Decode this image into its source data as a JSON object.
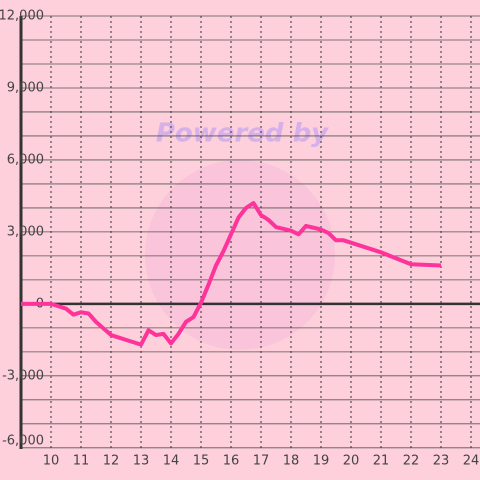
{
  "chart_data": {
    "type": "line",
    "watermark": "Powered by",
    "x": [
      9,
      10,
      10.25,
      10.5,
      10.75,
      11,
      11.25,
      11.5,
      12,
      12.5,
      13,
      13.25,
      13.5,
      13.75,
      14,
      14.25,
      14.5,
      14.75,
      15,
      15.25,
      15.5,
      15.75,
      16,
      16.25,
      16.5,
      16.75,
      17,
      17.25,
      17.5,
      18,
      18.25,
      18.5,
      19,
      19.25,
      19.5,
      19.75,
      20,
      21,
      22,
      23
    ],
    "series": [
      {
        "color": "#ff3399",
        "values": [
          0,
          0,
          -100,
          -200,
          -450,
          -350,
          -400,
          -750,
          -1300,
          -1500,
          -1700,
          -1100,
          -1300,
          -1250,
          -1650,
          -1250,
          -750,
          -550,
          50,
          800,
          1600,
          2200,
          2900,
          3600,
          4000,
          4200,
          3700,
          3500,
          3200,
          3050,
          2900,
          3250,
          3100,
          2950,
          2650,
          2650,
          2550,
          2150,
          1650,
          1600
        ]
      }
    ],
    "xlim": [
      9,
      24.3
    ],
    "xticks": [
      10,
      11,
      12,
      13,
      14,
      15,
      16,
      17,
      18,
      19,
      20,
      21,
      22,
      23,
      24
    ],
    "ylim": [
      -6300,
      12000
    ],
    "yticks": [
      {
        "value": -6000,
        "label": "-6,000"
      },
      {
        "value": -3000,
        "label": "-3,000"
      },
      0,
      {
        "value": 3000,
        "label": "3,000"
      },
      {
        "value": 6000,
        "label": "6,000"
      },
      {
        "value": 9000,
        "label": "9,000"
      },
      {
        "value": 12000,
        "label": "12,000"
      }
    ],
    "ygrid": [
      -6000,
      -5000,
      -4000,
      -3000,
      -2000,
      -1000,
      0,
      1000,
      2000,
      3000,
      4000,
      5000,
      6000,
      7000,
      8000,
      9000,
      10000,
      11000,
      12000
    ],
    "grid": true
  }
}
